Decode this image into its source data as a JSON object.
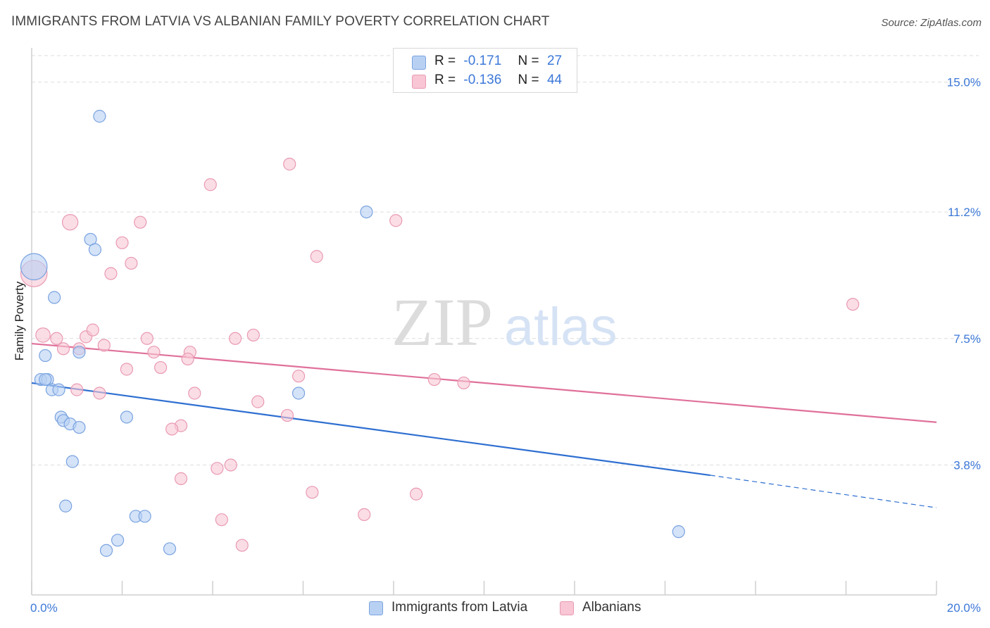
{
  "title": "IMMIGRANTS FROM LATVIA VS ALBANIAN FAMILY POVERTY CORRELATION CHART",
  "source": "Source: ZipAtlas.com",
  "watermark": {
    "zip": "ZIP",
    "atlas": "atlas"
  },
  "colors": {
    "blue_fill": "#b8d1f3",
    "blue_stroke": "#7aa3e0",
    "blue_line": "#2e6fd1",
    "pink_fill": "#f8c6d4",
    "pink_stroke": "#e99ab3",
    "pink_line": "#e0709a",
    "tick_label": "#3c78d8",
    "grid": "#dddddd"
  },
  "legend": {
    "series1": {
      "r_label": "R =",
      "r_value": "-0.171",
      "n_label": "N =",
      "n_value": "27"
    },
    "series2": {
      "r_label": "R =",
      "r_value": "-0.136",
      "n_label": "N =",
      "n_value": "44"
    }
  },
  "chart_data": {
    "type": "scatter",
    "title": "IMMIGRANTS FROM LATVIA VS ALBANIAN FAMILY POVERTY CORRELATION CHART",
    "xlabel": "",
    "ylabel": "Family Poverty",
    "xlim": [
      0,
      20
    ],
    "ylim": [
      0,
      16
    ],
    "x_tick_labels": [
      {
        "value": 0,
        "label": "0.0%"
      },
      {
        "value": 20,
        "label": "20.0%"
      }
    ],
    "y_tick_labels": [
      {
        "value": 3.8,
        "label": "3.8%"
      },
      {
        "value": 7.5,
        "label": "7.5%"
      },
      {
        "value": 11.2,
        "label": "11.2%"
      },
      {
        "value": 15.0,
        "label": "15.0%"
      }
    ],
    "series": [
      {
        "name": "Immigrants from Latvia",
        "color": "#b8d1f3",
        "points": [
          [
            1.5,
            14.0
          ],
          [
            0.05,
            9.6
          ],
          [
            0.5,
            8.7
          ],
          [
            1.3,
            10.4
          ],
          [
            1.4,
            10.1
          ],
          [
            7.4,
            11.2
          ],
          [
            0.3,
            7.0
          ],
          [
            1.05,
            7.1
          ],
          [
            0.2,
            6.3
          ],
          [
            0.35,
            6.3
          ],
          [
            0.45,
            6.0
          ],
          [
            0.6,
            6.0
          ],
          [
            5.9,
            5.9
          ],
          [
            0.65,
            5.2
          ],
          [
            0.7,
            5.1
          ],
          [
            0.85,
            5.0
          ],
          [
            1.05,
            4.9
          ],
          [
            2.1,
            5.2
          ],
          [
            0.9,
            3.9
          ],
          [
            0.75,
            2.6
          ],
          [
            2.3,
            2.3
          ],
          [
            2.5,
            2.3
          ],
          [
            1.9,
            1.6
          ],
          [
            1.65,
            1.3
          ],
          [
            3.05,
            1.35
          ],
          [
            14.3,
            1.85
          ],
          [
            0.3,
            6.3
          ]
        ],
        "sizes": [
          1,
          2.2,
          1,
          1,
          1,
          1,
          1,
          1,
          1,
          1,
          1,
          1,
          1,
          1,
          1,
          1,
          1,
          1,
          1,
          1,
          1,
          1,
          1,
          1,
          1,
          1,
          1
        ],
        "trend": {
          "x": [
            0,
            15
          ],
          "y": [
            6.2,
            3.5
          ],
          "dash_x": [
            15,
            20
          ],
          "dash_y": [
            3.5,
            2.55
          ]
        }
      },
      {
        "name": "Albanians",
        "color": "#f8c6d4",
        "points": [
          [
            5.7,
            12.6
          ],
          [
            3.95,
            12.0
          ],
          [
            0.85,
            10.9
          ],
          [
            2.4,
            10.9
          ],
          [
            2.0,
            10.3
          ],
          [
            8.05,
            10.95
          ],
          [
            6.3,
            9.9
          ],
          [
            2.2,
            9.7
          ],
          [
            1.75,
            9.4
          ],
          [
            0.05,
            9.4
          ],
          [
            0.25,
            7.6
          ],
          [
            0.55,
            7.5
          ],
          [
            0.7,
            7.2
          ],
          [
            1.05,
            7.2
          ],
          [
            1.2,
            7.55
          ],
          [
            1.35,
            7.75
          ],
          [
            1.6,
            7.3
          ],
          [
            2.55,
            7.5
          ],
          [
            2.7,
            7.1
          ],
          [
            3.5,
            7.1
          ],
          [
            4.5,
            7.5
          ],
          [
            4.9,
            7.6
          ],
          [
            3.45,
            6.9
          ],
          [
            2.1,
            6.6
          ],
          [
            2.85,
            6.65
          ],
          [
            5.9,
            6.4
          ],
          [
            8.9,
            6.3
          ],
          [
            9.55,
            6.2
          ],
          [
            18.15,
            8.5
          ],
          [
            1.0,
            6.0
          ],
          [
            1.5,
            5.9
          ],
          [
            3.6,
            5.9
          ],
          [
            5.0,
            5.65
          ],
          [
            5.65,
            5.25
          ],
          [
            3.3,
            4.95
          ],
          [
            3.1,
            4.85
          ],
          [
            4.1,
            3.7
          ],
          [
            4.4,
            3.8
          ],
          [
            3.3,
            3.4
          ],
          [
            6.2,
            3.0
          ],
          [
            8.5,
            2.95
          ],
          [
            4.2,
            2.2
          ],
          [
            7.35,
            2.35
          ],
          [
            4.65,
            1.45
          ]
        ],
        "sizes": [
          1,
          1,
          1.3,
          1,
          1,
          1,
          1,
          1,
          1,
          2.2,
          1.2,
          1,
          1,
          1,
          1,
          1,
          1,
          1,
          1,
          1,
          1,
          1,
          1,
          1,
          1,
          1,
          1,
          1,
          1,
          1,
          1,
          1,
          1,
          1,
          1,
          1,
          1,
          1,
          1,
          1,
          1,
          1,
          1,
          1
        ],
        "trend": {
          "x": [
            0,
            20
          ],
          "y": [
            7.35,
            5.05
          ]
        }
      }
    ]
  }
}
